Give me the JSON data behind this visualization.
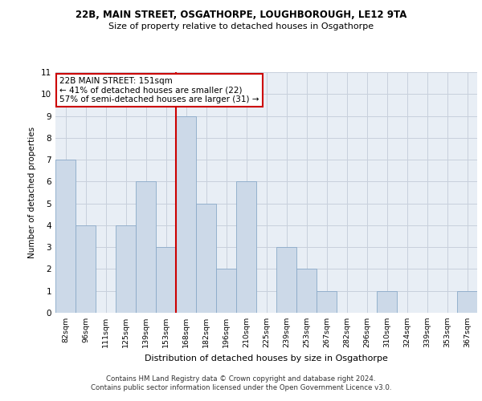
{
  "title_line1": "22B, MAIN STREET, OSGATHORPE, LOUGHBOROUGH, LE12 9TA",
  "title_line2": "Size of property relative to detached houses in Osgathorpe",
  "xlabel": "Distribution of detached houses by size in Osgathorpe",
  "ylabel": "Number of detached properties",
  "categories": [
    "82sqm",
    "96sqm",
    "111sqm",
    "125sqm",
    "139sqm",
    "153sqm",
    "168sqm",
    "182sqm",
    "196sqm",
    "210sqm",
    "225sqm",
    "239sqm",
    "253sqm",
    "267sqm",
    "282sqm",
    "296sqm",
    "310sqm",
    "324sqm",
    "339sqm",
    "353sqm",
    "367sqm"
  ],
  "values": [
    7,
    4,
    0,
    4,
    6,
    3,
    9,
    5,
    2,
    6,
    0,
    3,
    2,
    1,
    0,
    0,
    1,
    0,
    0,
    0,
    1
  ],
  "bar_color": "#ccd9e8",
  "bar_edge_color": "#8aaac8",
  "reference_line_x": 5.5,
  "reference_line_color": "#cc0000",
  "annotation_text": "22B MAIN STREET: 151sqm\n← 41% of detached houses are smaller (22)\n57% of semi-detached houses are larger (31) →",
  "annotation_box_color": "#cc0000",
  "ylim": [
    0,
    11
  ],
  "yticks": [
    0,
    1,
    2,
    3,
    4,
    5,
    6,
    7,
    8,
    9,
    10,
    11
  ],
  "grid_color": "#c8d0dc",
  "bg_color": "#e8eef5",
  "footer_line1": "Contains HM Land Registry data © Crown copyright and database right 2024.",
  "footer_line2": "Contains public sector information licensed under the Open Government Licence v3.0."
}
